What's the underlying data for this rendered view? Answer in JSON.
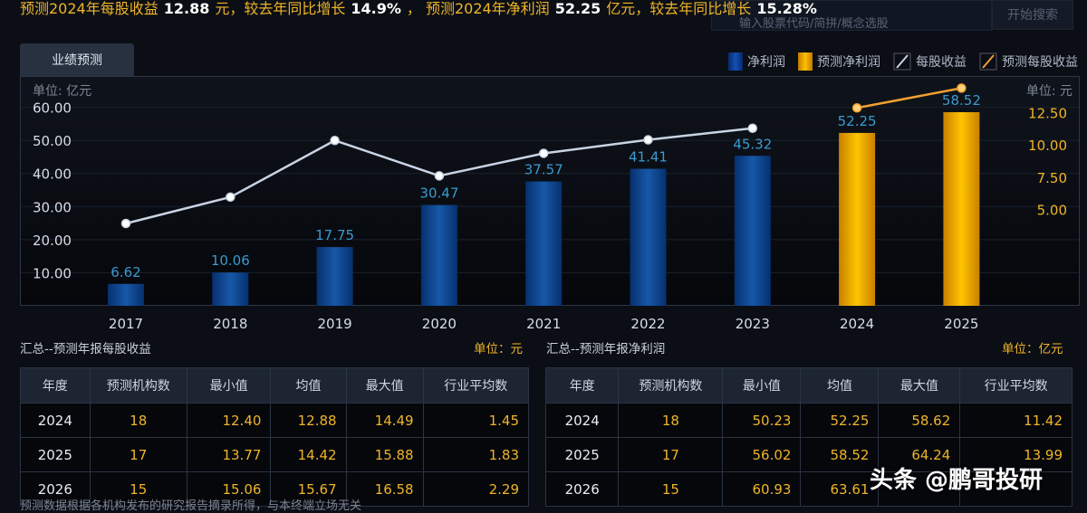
{
  "headline": {
    "p1": "预测2024年每股收益",
    "eps": "12.88",
    "p2": "元，较去年同比增长",
    "eps_growth": "14.9%",
    "p3": "，  预测2024年净利润",
    "np": "52.25",
    "p4": "亿元，较去年同比增长",
    "np_growth": "15.28%"
  },
  "search": {
    "placeholder": "输入股票代码/简拼/概念选股",
    "button": "开始搜索"
  },
  "tab": "业绩预测",
  "legend": [
    {
      "label": "净利润",
      "color": "#0d3a8c"
    },
    {
      "label": "预测净利润",
      "color": "#f5a800"
    },
    {
      "label": "每股收益",
      "color": "#c8d4e4"
    },
    {
      "label": "预测每股收益",
      "color": "#f0a030"
    }
  ],
  "chart_data": {
    "type": "bar+line",
    "categories": [
      "2017",
      "2018",
      "2019",
      "2020",
      "2021",
      "2022",
      "2023",
      "2024",
      "2025"
    ],
    "left_unit": "单位: 亿元",
    "right_unit": "单位: 元",
    "left_ticks": [
      "10.00",
      "20.00",
      "30.00",
      "40.00",
      "50.00",
      "60.00"
    ],
    "right_ticks": [
      "5.00",
      "7.50",
      "10.00",
      "12.50"
    ],
    "ylim_left": [
      0,
      70
    ],
    "ylim_right": [
      -2.5,
      15.5
    ],
    "series": [
      {
        "name": "净利润",
        "type": "bar",
        "values": [
          6.62,
          10.06,
          17.75,
          30.47,
          37.57,
          41.41,
          45.32,
          null,
          null
        ],
        "labels": [
          "6.62",
          "10.06",
          "17.75",
          "30.47",
          "37.57",
          "41.41",
          "45.32",
          "",
          ""
        ]
      },
      {
        "name": "预测净利润",
        "type": "bar",
        "values": [
          null,
          null,
          null,
          null,
          null,
          null,
          null,
          52.25,
          58.52
        ],
        "labels": [
          "",
          "",
          "",
          "",
          "",
          "",
          "",
          "52.25",
          "58.52"
        ]
      },
      {
        "name": "每股收益",
        "type": "line",
        "axis": "right",
        "values": [
          3.9,
          5.95,
          10.35,
          7.6,
          9.35,
          10.4,
          11.3,
          null,
          null
        ]
      },
      {
        "name": "预测每股收益",
        "type": "line",
        "axis": "right",
        "values": [
          null,
          null,
          null,
          null,
          null,
          null,
          null,
          12.88,
          14.42
        ]
      }
    ]
  },
  "eps_table": {
    "title": "汇总--预测年报每股收益",
    "unit": "单位：元",
    "headers": [
      "年度",
      "预测机构数",
      "最小值",
      "均值",
      "最大值",
      "行业平均数"
    ],
    "rows": [
      [
        "2024",
        "18",
        "12.40",
        "12.88",
        "14.49",
        "1.45"
      ],
      [
        "2025",
        "17",
        "13.77",
        "14.42",
        "15.88",
        "1.83"
      ],
      [
        "2026",
        "15",
        "15.06",
        "15.67",
        "16.58",
        "2.29"
      ]
    ]
  },
  "np_table": {
    "title": "汇总--预测年报净利润",
    "unit": "单位：亿元",
    "headers": [
      "年度",
      "预测机构数",
      "最小值",
      "均值",
      "最大值",
      "行业平均数"
    ],
    "rows": [
      [
        "2024",
        "18",
        "50.23",
        "52.25",
        "58.62",
        "11.42"
      ],
      [
        "2025",
        "17",
        "56.02",
        "58.52",
        "64.24",
        "13.99"
      ],
      [
        "2026",
        "15",
        "60.93",
        "63.61",
        "",
        ""
      ]
    ]
  },
  "watermark": "头条 @鹏哥投研",
  "footnote": "预测数据根据各机构发布的研究报告摘录所得，与本终端立场无关"
}
